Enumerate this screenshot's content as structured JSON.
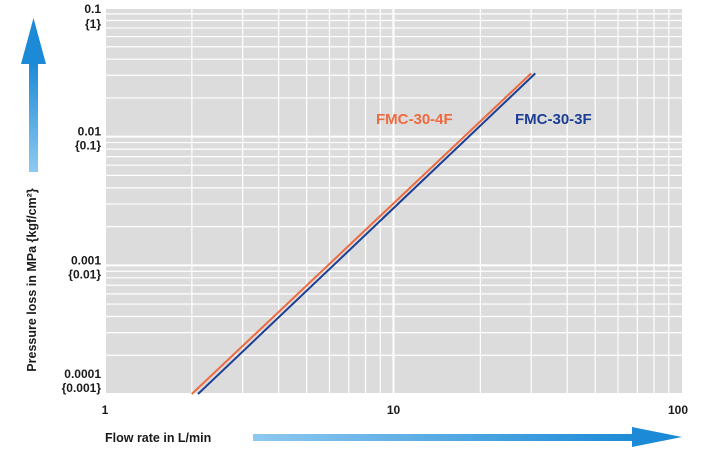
{
  "chart_data": {
    "type": "line",
    "x_scale": "log",
    "y_scale": "log",
    "xlim": [
      1,
      100
    ],
    "ylim": [
      0.0001,
      0.1
    ],
    "grid": true,
    "x_ticks": [
      {
        "value": 1,
        "label": "1"
      },
      {
        "value": 10,
        "label": "10"
      },
      {
        "value": 100,
        "label": "100"
      }
    ],
    "y_ticks": [
      {
        "value": 0.1,
        "label": "0.1",
        "sublabel": "{1}"
      },
      {
        "value": 0.01,
        "label": "0.01",
        "sublabel": "{0.1}"
      },
      {
        "value": 0.001,
        "label": "0.001",
        "sublabel": "{0.01}"
      },
      {
        "value": 0.0001,
        "label": "0.0001",
        "sublabel": "{0.001}"
      }
    ],
    "xlabel": "Flow rate in L/min",
    "ylabel": "Pressure loss in MPa {kgf/cm²}",
    "series": [
      {
        "name": "FMC-30-4F",
        "color": "#ee6a3f",
        "x": [
          2.0,
          30.0
        ],
        "y": [
          0.0001,
          0.031
        ]
      },
      {
        "name": "FMC-30-3F",
        "color": "#1c3f95",
        "x": [
          2.1,
          31.0
        ],
        "y": [
          0.0001,
          0.031
        ]
      }
    ]
  },
  "colors": {
    "plot_background": "#dcdcdc",
    "grid": "#ffffff",
    "axis_arrow": "#1c8ad6"
  }
}
